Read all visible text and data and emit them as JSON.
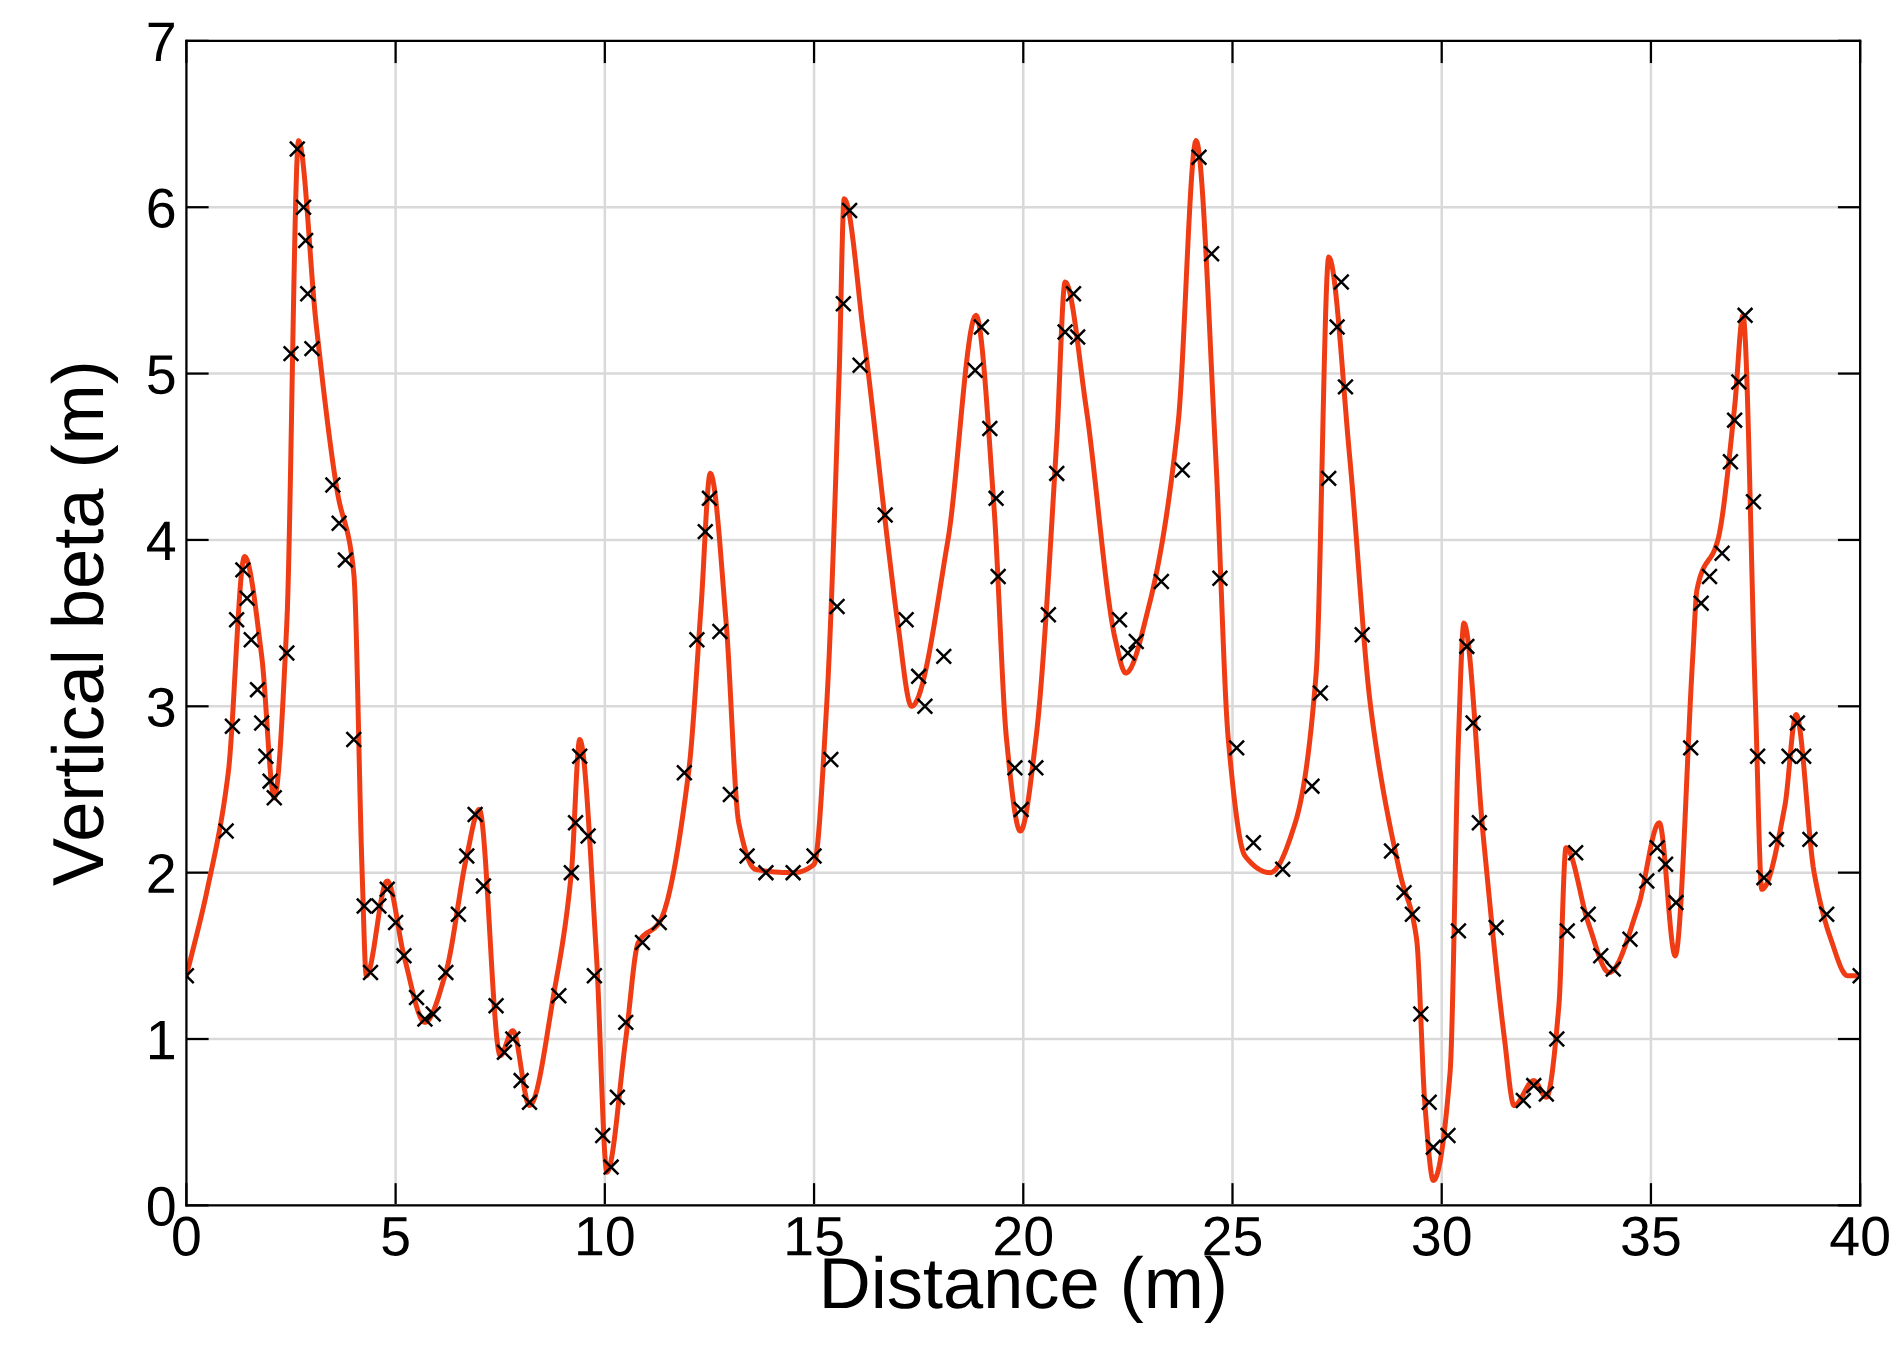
{
  "chart_data": {
    "type": "line",
    "xlabel": "Distance (m)",
    "ylabel": "Vertical beta (m)",
    "xlim": [
      0,
      40
    ],
    "ylim": [
      0,
      7
    ],
    "xticks": [
      0,
      5,
      10,
      15,
      20,
      25,
      30,
      35,
      40
    ],
    "yticks": [
      0,
      1,
      2,
      3,
      4,
      5,
      6,
      7
    ],
    "grid": true,
    "series": [
      {
        "color": "#f03c14",
        "marker": "none",
        "x": [
          0,
          0.5,
          1.0,
          1.39,
          1.8,
          2.1,
          2.4,
          2.68,
          3.1,
          3.6,
          4.0,
          4.2,
          4.3,
          4.8,
          5.2,
          5.7,
          6.2,
          6.7,
          7.0,
          7.5,
          7.8,
          8.2,
          8.8,
          9.2,
          9.4,
          9.8,
          10.05,
          10.5,
          10.8,
          11.3,
          12.0,
          12.3,
          12.52,
          12.9,
          13.2,
          13.6,
          14.5,
          15.0,
          15.3,
          15.6,
          15.72,
          16.2,
          16.8,
          17.0,
          17.33,
          18.2,
          18.87,
          19.3,
          19.6,
          19.93,
          20.3,
          20.8,
          21.0,
          21.5,
          22.2,
          22.45,
          23.0,
          23.7,
          24.13,
          24.6,
          24.9,
          25.3,
          25.9,
          26.5,
          27.0,
          27.3,
          27.8,
          28.3,
          29.0,
          29.4,
          29.6,
          29.8,
          30.2,
          30.4,
          30.53,
          31.0,
          31.5,
          31.73,
          32.2,
          32.5,
          32.8,
          32.97,
          33.5,
          34.0,
          34.7,
          35.2,
          35.58,
          36.0,
          36.1,
          36.6,
          37.0,
          37.2,
          37.5,
          37.65,
          38.2,
          38.47,
          38.9,
          39.3,
          39.7,
          40
        ],
        "values": [
          1.38,
          1.9,
          2.6,
          3.9,
          3.3,
          2.45,
          3.5,
          6.4,
          5.3,
          4.3,
          3.8,
          2.0,
          1.38,
          1.95,
          1.5,
          1.1,
          1.4,
          2.1,
          2.38,
          0.9,
          1.05,
          0.6,
          1.3,
          2.0,
          2.8,
          1.5,
          0.2,
          1.0,
          1.58,
          1.7,
          2.6,
          3.6,
          4.4,
          3.5,
          2.3,
          2.02,
          2.0,
          2.05,
          3.0,
          5.0,
          6.05,
          5.2,
          3.9,
          3.5,
          3.0,
          4.0,
          5.35,
          4.2,
          2.8,
          2.25,
          2.8,
          4.6,
          5.55,
          4.8,
          3.4,
          3.2,
          3.6,
          4.7,
          6.4,
          4.5,
          2.8,
          2.1,
          2.0,
          2.3,
          3.2,
          5.7,
          4.5,
          3.0,
          2.0,
          1.6,
          0.6,
          0.15,
          0.8,
          2.8,
          3.5,
          2.2,
          1.0,
          0.6,
          0.75,
          0.65,
          1.2,
          2.15,
          1.7,
          1.4,
          1.8,
          2.3,
          1.5,
          3.3,
          3.7,
          4.0,
          4.8,
          5.35,
          3.0,
          1.9,
          2.4,
          2.95,
          2.0,
          1.6,
          1.38,
          1.38
        ]
      },
      {
        "type": "scatter",
        "color": "#000000",
        "marker": "cross",
        "x": [
          0,
          0.95,
          1.1,
          1.2,
          1.35,
          1.45,
          1.55,
          1.7,
          1.8,
          1.9,
          2.0,
          2.1,
          2.4,
          2.5,
          2.65,
          2.8,
          2.85,
          2.9,
          3.0,
          3.5,
          3.65,
          3.8,
          4.0,
          4.25,
          4.4,
          4.6,
          4.8,
          5.0,
          5.2,
          5.5,
          5.7,
          5.9,
          6.2,
          6.5,
          6.7,
          6.9,
          7.1,
          7.4,
          7.6,
          7.8,
          8.0,
          8.2,
          8.9,
          9.2,
          9.3,
          9.4,
          9.6,
          9.75,
          9.95,
          10.15,
          10.3,
          10.5,
          10.9,
          11.3,
          11.9,
          12.2,
          12.4,
          12.5,
          12.75,
          13.0,
          13.4,
          13.85,
          14.5,
          15.0,
          15.4,
          15.55,
          15.7,
          15.85,
          16.1,
          16.7,
          17.2,
          17.5,
          17.65,
          18.1,
          18.85,
          19.0,
          19.2,
          19.35,
          19.4,
          19.8,
          19.95,
          20.3,
          20.6,
          20.8,
          21.0,
          21.2,
          21.3,
          22.3,
          22.5,
          22.7,
          23.3,
          23.8,
          24.2,
          24.5,
          24.7,
          25.1,
          25.5,
          26.2,
          26.9,
          27.1,
          27.3,
          27.5,
          27.6,
          27.7,
          28.1,
          28.8,
          29.1,
          29.3,
          29.5,
          29.7,
          29.8,
          30.15,
          30.4,
          30.6,
          30.75,
          30.9,
          31.3,
          31.95,
          32.2,
          32.5,
          32.75,
          33.0,
          33.2,
          33.5,
          33.8,
          34.1,
          34.5,
          34.9,
          35.15,
          35.35,
          35.6,
          35.95,
          36.2,
          36.4,
          36.7,
          36.9,
          37.0,
          37.1,
          37.25,
          37.45,
          37.55,
          37.7,
          38.0,
          38.3,
          38.5,
          38.65,
          38.8,
          39.2,
          40
        ],
        "values": [
          1.38,
          2.25,
          2.88,
          3.52,
          3.82,
          3.65,
          3.4,
          3.1,
          2.9,
          2.7,
          2.55,
          2.45,
          3.32,
          5.12,
          6.35,
          6.0,
          5.8,
          5.48,
          5.15,
          4.33,
          4.1,
          3.88,
          2.8,
          1.8,
          1.4,
          1.8,
          1.9,
          1.7,
          1.5,
          1.25,
          1.12,
          1.15,
          1.4,
          1.75,
          2.1,
          2.35,
          1.92,
          1.2,
          0.92,
          1.0,
          0.75,
          0.62,
          1.26,
          2.0,
          2.3,
          2.7,
          2.22,
          1.38,
          0.42,
          0.23,
          0.65,
          1.1,
          1.58,
          1.7,
          2.6,
          3.4,
          4.05,
          4.25,
          3.45,
          2.47,
          2.1,
          2.0,
          2.0,
          2.1,
          2.68,
          3.6,
          5.42,
          5.98,
          5.05,
          4.15,
          3.52,
          3.18,
          3.0,
          3.3,
          5.02,
          5.28,
          4.67,
          4.25,
          3.78,
          2.63,
          2.38,
          2.63,
          3.55,
          4.4,
          5.25,
          5.48,
          5.22,
          3.52,
          3.32,
          3.39,
          3.75,
          4.42,
          6.3,
          5.72,
          3.77,
          2.75,
          2.18,
          2.02,
          2.52,
          3.08,
          4.37,
          5.28,
          5.55,
          4.92,
          3.43,
          2.13,
          1.88,
          1.75,
          1.15,
          0.62,
          0.35,
          0.42,
          1.65,
          3.36,
          2.9,
          2.3,
          1.67,
          0.63,
          0.72,
          0.67,
          1.0,
          1.65,
          2.12,
          1.75,
          1.5,
          1.42,
          1.6,
          1.95,
          2.15,
          2.05,
          1.82,
          2.75,
          3.62,
          3.78,
          3.92,
          4.47,
          4.72,
          4.95,
          5.35,
          4.23,
          2.7,
          1.97,
          2.2,
          2.7,
          2.9,
          2.7,
          2.2,
          1.75,
          1.38
        ]
      }
    ]
  }
}
